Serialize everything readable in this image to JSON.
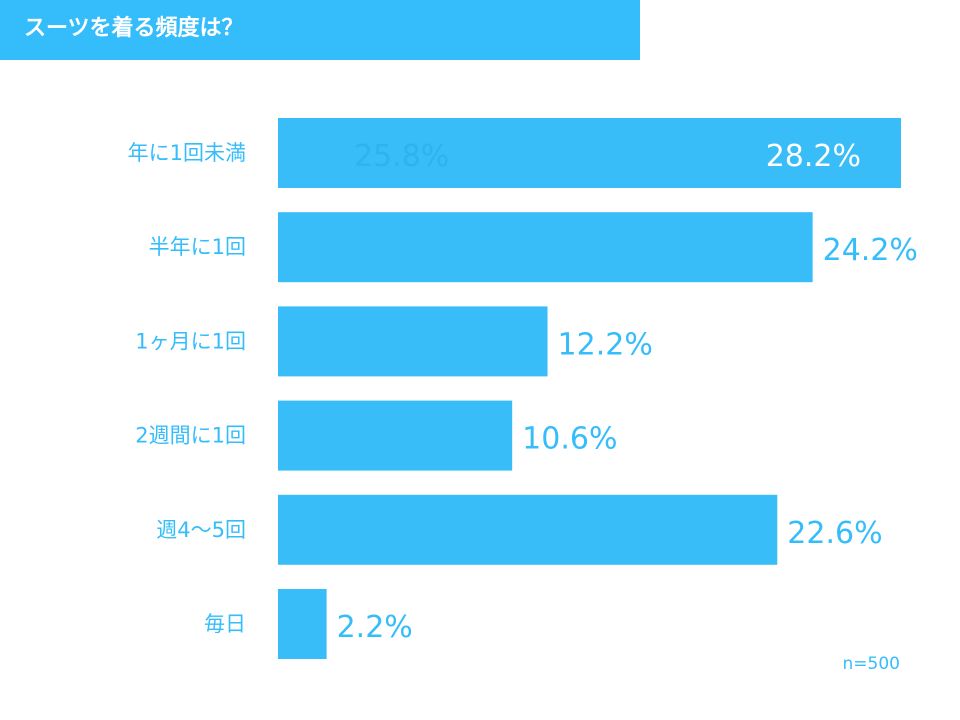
{
  "title": "スーツを着る頻度は？",
  "note": "n=500",
  "colors": {
    "accent": "#35bdfb",
    "bar": "#38bdf8",
    "banner_text": "#ffffff",
    "label": "#35bdfb",
    "value_inside": "#ffffff",
    "value_outside": "#35bdfb",
    "ghost_label": "#2fb2ee"
  },
  "chart_data": {
    "type": "bar",
    "orientation": "horizontal",
    "title": "スーツを着る頻度は？",
    "categories": [
      "年に1回未満",
      "半年に1回",
      "1ヶ月に1回",
      "2週間に1回",
      "週4～5回",
      "毎日"
    ],
    "values": [
      28.2,
      24.2,
      12.2,
      10.6,
      22.6,
      2.2
    ],
    "value_labels": [
      "28.2%",
      "24.2%",
      "12.2%",
      "10.6%",
      "22.6%",
      "2.2%"
    ],
    "ghost_label": "25.8%",
    "unit": "%",
    "xlim": [
      0,
      28.2
    ],
    "grid": false,
    "legend": "none"
  }
}
